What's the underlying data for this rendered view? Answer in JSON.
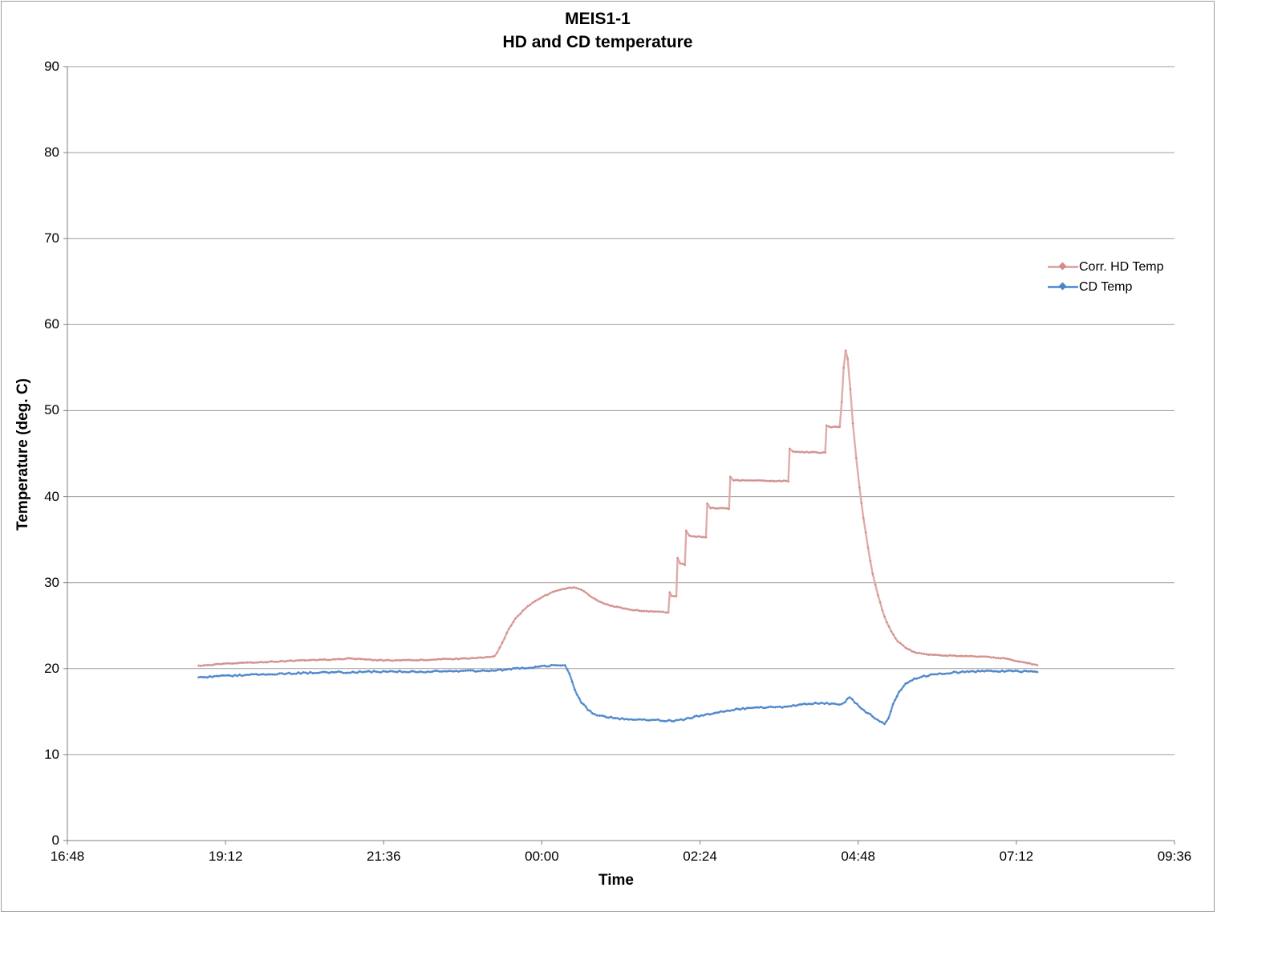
{
  "title": "MEIS1-1",
  "subtitle": "HD and CD temperature",
  "colors": {
    "hd_line": "#e0acaa",
    "hd_marker": "#d08d8b",
    "cd_line": "#6598d8",
    "cd_marker": "#4e84c8",
    "grid": "#9c9c9c",
    "axis": "#808080",
    "text": "#000000",
    "frame_border": "#9d9d9d"
  },
  "chart_data": {
    "type": "line",
    "title": "MEIS1-1",
    "subtitle": "HD and CD temperature",
    "xlabel": "Time",
    "ylabel": "Temperature (deg. C)",
    "x_tick_labels": [
      "16:48",
      "19:12",
      "21:36",
      "00:00",
      "02:24",
      "04:48",
      "07:12",
      "09:36"
    ],
    "x_range_hours_after_first_tick": [
      0,
      16.8
    ],
    "ylim": [
      0,
      90
    ],
    "y_tick_step": 10,
    "grid": "horizontal",
    "legend_position": "right",
    "series": [
      {
        "name": "Corr. HD Temp",
        "color_key": "hd",
        "noise": 0.05,
        "points": [
          [
            1.99,
            20.3
          ],
          [
            2.2,
            20.45
          ],
          [
            2.5,
            20.6
          ],
          [
            2.8,
            20.7
          ],
          [
            3.1,
            20.8
          ],
          [
            3.4,
            20.9
          ],
          [
            3.7,
            21.0
          ],
          [
            4.0,
            21.05
          ],
          [
            4.25,
            21.15
          ],
          [
            4.45,
            21.15
          ],
          [
            4.6,
            21.0
          ],
          [
            4.8,
            20.95
          ],
          [
            5.1,
            20.95
          ],
          [
            5.4,
            21.0
          ],
          [
            5.7,
            21.1
          ],
          [
            6.0,
            21.15
          ],
          [
            6.3,
            21.3
          ],
          [
            6.48,
            21.4
          ],
          [
            6.52,
            21.8
          ],
          [
            6.6,
            23.0
          ],
          [
            6.7,
            24.6
          ],
          [
            6.8,
            25.8
          ],
          [
            6.95,
            27.0
          ],
          [
            7.1,
            27.9
          ],
          [
            7.25,
            28.5
          ],
          [
            7.4,
            29.0
          ],
          [
            7.55,
            29.3
          ],
          [
            7.68,
            29.45
          ],
          [
            7.8,
            29.2
          ],
          [
            7.95,
            28.3
          ],
          [
            8.1,
            27.7
          ],
          [
            8.3,
            27.2
          ],
          [
            8.5,
            26.9
          ],
          [
            8.75,
            26.7
          ],
          [
            9.0,
            26.6
          ],
          [
            9.12,
            26.55
          ],
          [
            9.14,
            28.9
          ],
          [
            9.17,
            28.5
          ],
          [
            9.24,
            28.4
          ],
          [
            9.26,
            32.9
          ],
          [
            9.3,
            32.2
          ],
          [
            9.37,
            32.1
          ],
          [
            9.39,
            36.0
          ],
          [
            9.44,
            35.4
          ],
          [
            9.69,
            35.3
          ],
          [
            9.71,
            39.2
          ],
          [
            9.76,
            38.7
          ],
          [
            10.04,
            38.6
          ],
          [
            10.06,
            42.3
          ],
          [
            10.11,
            41.9
          ],
          [
            10.94,
            41.8
          ],
          [
            10.96,
            45.6
          ],
          [
            11.01,
            45.2
          ],
          [
            11.5,
            45.1
          ],
          [
            11.52,
            48.3
          ],
          [
            11.56,
            48.1
          ],
          [
            11.72,
            48.1
          ],
          [
            11.75,
            51.0
          ],
          [
            11.78,
            55.0
          ],
          [
            11.81,
            57.0
          ],
          [
            11.84,
            56.0
          ],
          [
            11.88,
            52.5
          ],
          [
            11.92,
            48.5
          ],
          [
            11.97,
            44.5
          ],
          [
            12.02,
            41.0
          ],
          [
            12.08,
            37.5
          ],
          [
            12.15,
            34.0
          ],
          [
            12.22,
            31.0
          ],
          [
            12.3,
            28.5
          ],
          [
            12.4,
            26.0
          ],
          [
            12.5,
            24.3
          ],
          [
            12.6,
            23.2
          ],
          [
            12.72,
            22.4
          ],
          [
            12.85,
            21.9
          ],
          [
            13.0,
            21.7
          ],
          [
            13.25,
            21.55
          ],
          [
            13.6,
            21.45
          ],
          [
            13.95,
            21.35
          ],
          [
            14.2,
            21.2
          ],
          [
            14.4,
            20.9
          ],
          [
            14.6,
            20.6
          ],
          [
            14.72,
            20.4
          ]
        ]
      },
      {
        "name": "CD Temp",
        "color_key": "cd",
        "noise": 0.09,
        "points": [
          [
            1.99,
            19.0
          ],
          [
            2.4,
            19.15
          ],
          [
            2.9,
            19.3
          ],
          [
            3.4,
            19.45
          ],
          [
            3.9,
            19.55
          ],
          [
            4.4,
            19.6
          ],
          [
            4.9,
            19.65
          ],
          [
            5.4,
            19.65
          ],
          [
            5.9,
            19.7
          ],
          [
            6.3,
            19.75
          ],
          [
            6.6,
            19.85
          ],
          [
            6.9,
            20.05
          ],
          [
            7.2,
            20.25
          ],
          [
            7.45,
            20.4
          ],
          [
            7.55,
            20.35
          ],
          [
            7.62,
            19.3
          ],
          [
            7.7,
            17.5
          ],
          [
            7.8,
            16.1
          ],
          [
            7.9,
            15.2
          ],
          [
            8.0,
            14.7
          ],
          [
            8.15,
            14.4
          ],
          [
            8.35,
            14.2
          ],
          [
            8.65,
            14.1
          ],
          [
            9.0,
            14.0
          ],
          [
            9.2,
            13.9
          ],
          [
            9.35,
            14.05
          ],
          [
            9.55,
            14.45
          ],
          [
            9.75,
            14.75
          ],
          [
            9.95,
            15.0
          ],
          [
            10.15,
            15.25
          ],
          [
            10.35,
            15.4
          ],
          [
            10.6,
            15.5
          ],
          [
            10.85,
            15.5
          ],
          [
            11.05,
            15.75
          ],
          [
            11.25,
            15.9
          ],
          [
            11.45,
            16.0
          ],
          [
            11.6,
            15.85
          ],
          [
            11.72,
            15.8
          ],
          [
            11.8,
            16.1
          ],
          [
            11.87,
            16.7
          ],
          [
            11.95,
            16.1
          ],
          [
            12.05,
            15.4
          ],
          [
            12.15,
            14.8
          ],
          [
            12.25,
            14.3
          ],
          [
            12.33,
            13.9
          ],
          [
            12.4,
            13.6
          ],
          [
            12.46,
            14.3
          ],
          [
            12.53,
            15.8
          ],
          [
            12.62,
            17.2
          ],
          [
            12.72,
            18.2
          ],
          [
            12.85,
            18.8
          ],
          [
            13.0,
            19.1
          ],
          [
            13.2,
            19.35
          ],
          [
            13.45,
            19.55
          ],
          [
            13.75,
            19.65
          ],
          [
            14.05,
            19.7
          ],
          [
            14.35,
            19.7
          ],
          [
            14.55,
            19.65
          ],
          [
            14.72,
            19.6
          ]
        ]
      }
    ]
  }
}
